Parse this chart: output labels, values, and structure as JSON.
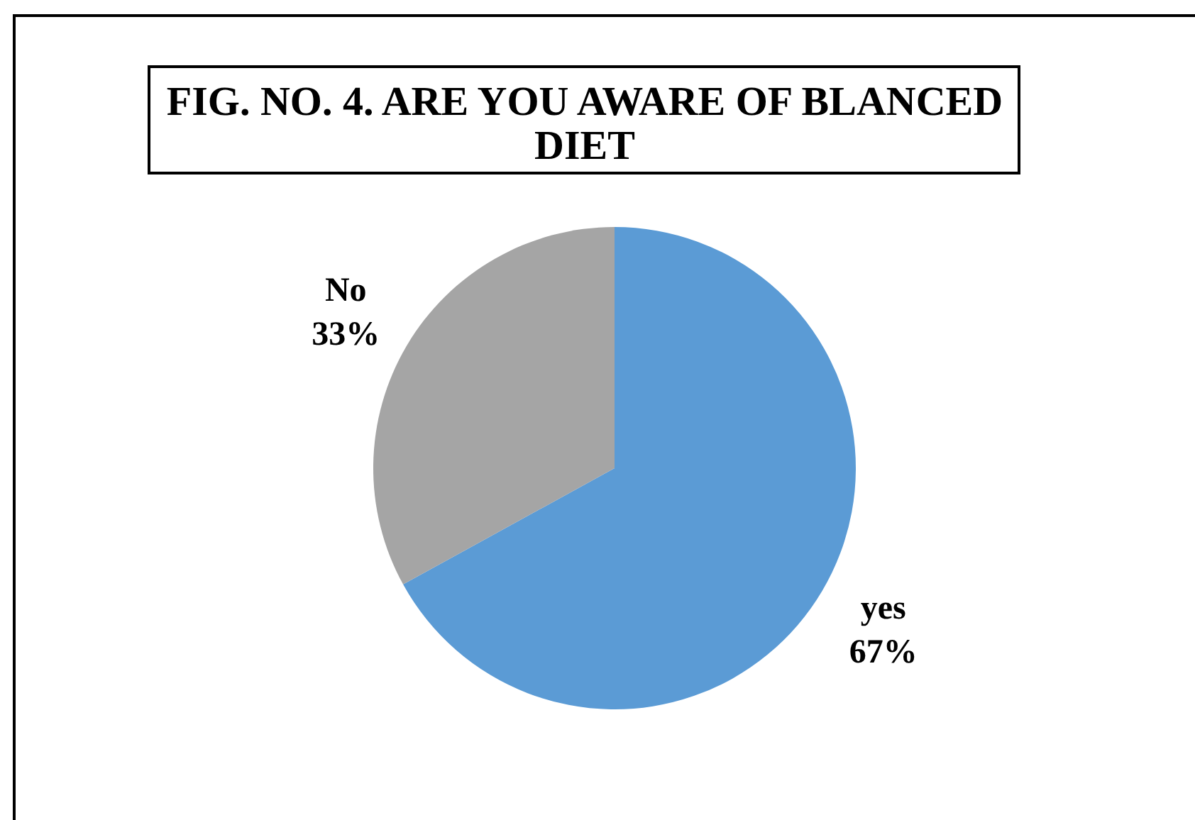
{
  "chart_data": {
    "type": "pie",
    "title": "FIG. NO. 4. ARE YOU AWARE OF BLANCED DIET",
    "categories": [
      "yes",
      "No"
    ],
    "values": [
      67,
      33
    ],
    "colors": [
      "#5b9bd5",
      "#a5a5a5"
    ],
    "value_labels": [
      "67%",
      "33%"
    ],
    "legend": false
  }
}
